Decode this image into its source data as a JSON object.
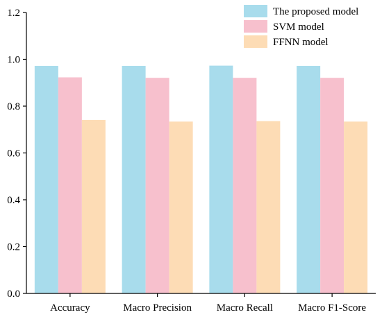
{
  "chart_data": {
    "type": "bar",
    "title": "",
    "xlabel": "",
    "ylabel": "",
    "ylim": [
      0,
      1.2
    ],
    "yticks": [
      0.0,
      0.2,
      0.4,
      0.6,
      0.8,
      1.0,
      1.2
    ],
    "ytick_labels": [
      "0.0",
      "0.2",
      "0.4",
      "0.6",
      "0.8",
      "1.0",
      "1.2"
    ],
    "grid": false,
    "legend_position": "top-right",
    "categories": [
      "Accuracy",
      "Macro Precision",
      "Macro Recall",
      "Macro F1-Score"
    ],
    "series": [
      {
        "name": "The proposed model",
        "color": "#a8dcec",
        "values": [
          0.972,
          0.972,
          0.973,
          0.972
        ]
      },
      {
        "name": "SVM model",
        "color": "#f7c0cd",
        "values": [
          0.923,
          0.921,
          0.921,
          0.921
        ]
      },
      {
        "name": "FFNN model",
        "color": "#fddcb5",
        "values": [
          0.741,
          0.734,
          0.736,
          0.734
        ]
      }
    ]
  }
}
